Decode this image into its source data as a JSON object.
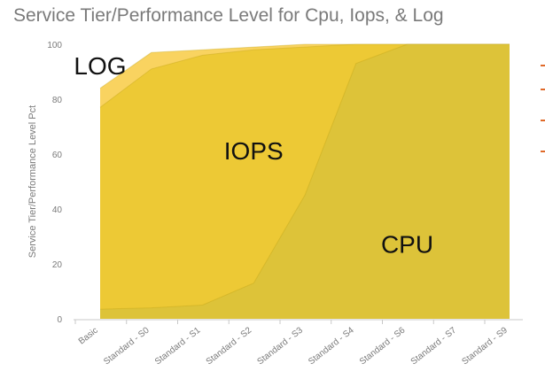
{
  "chart_data": {
    "type": "area",
    "title": "Service Tier/Performance Level for Cpu, Iops, & Log",
    "ylabel": "Service Tier/Performance Level Pct",
    "xlabel": "",
    "ylim": [
      0,
      100
    ],
    "yticks": [
      0,
      20,
      40,
      60,
      80,
      100
    ],
    "categories": [
      "Basic",
      "Standard - S0",
      "Standard - S1",
      "Standard - S2",
      "Standard - S3",
      "Standard - S4",
      "Standard - S6",
      "Standard - S7",
      "Standard - S9"
    ],
    "series": [
      {
        "key": "log",
        "color": "#f8cf52",
        "values": [
          84,
          97,
          98,
          99,
          100,
          100,
          100,
          100,
          100
        ]
      },
      {
        "key": "iops",
        "color": "#ecc832",
        "values": [
          77,
          91,
          96,
          98,
          99,
          100,
          100,
          100,
          100
        ]
      },
      {
        "key": "cpu",
        "color": "#dbc23a",
        "values": [
          3.5,
          4,
          5,
          13,
          45,
          93,
          100,
          100,
          100
        ]
      }
    ],
    "annotations": [
      {
        "text": "LOG",
        "x": "Basic",
        "y": 89
      },
      {
        "text": "IOPS",
        "x": "Standard - S2",
        "y": 58
      },
      {
        "text": "CPU",
        "x": "Standard - S6",
        "y": 24
      }
    ],
    "grid": false,
    "legend": "none"
  }
}
